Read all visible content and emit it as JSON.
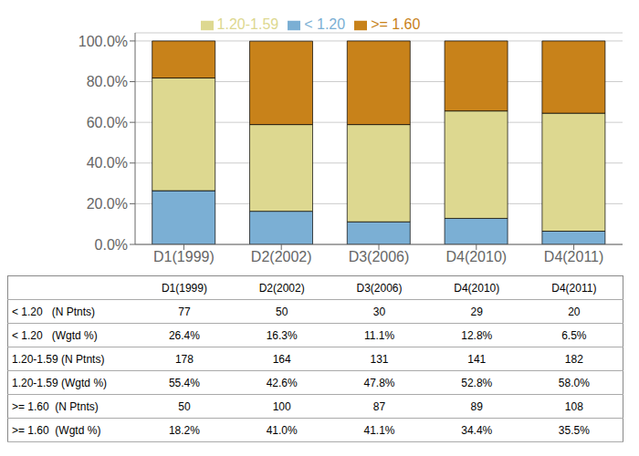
{
  "chart_data": {
    "type": "bar",
    "stacked": true,
    "grid": true,
    "legend": "top",
    "categories": [
      "D1(1999)",
      "D2(2002)",
      "D3(2006)",
      "D4(2010)",
      "D4(2011)"
    ],
    "series": [
      {
        "name": "< 1.20",
        "color": "#7bafd4",
        "values": [
          26.4,
          16.3,
          11.1,
          12.8,
          6.5
        ]
      },
      {
        "name": "1.20-1.59",
        "color": "#ddd890",
        "values": [
          55.4,
          42.6,
          47.8,
          52.8,
          58.0
        ]
      },
      {
        "name": ">= 1.60",
        "color": "#c8821a",
        "values": [
          18.2,
          41.0,
          41.1,
          34.4,
          35.5
        ]
      }
    ],
    "ylim": [
      0,
      104
    ],
    "yticks": [
      {
        "value": 0,
        "label": "0.0%"
      },
      {
        "value": 20,
        "label": "20.0%"
      },
      {
        "value": 40,
        "label": "40.0%"
      },
      {
        "value": 60,
        "label": "60.0%"
      },
      {
        "value": 80,
        "label": "80.0%"
      },
      {
        "value": 100,
        "label": "100.0%"
      }
    ],
    "table": {
      "row_labels": [
        "< 1.20   (N Ptnts)",
        "< 1.20   (Wgtd %)",
        "1.20-1.59 (N Ptnts)",
        "1.20-1.59 (Wgtd %)",
        ">= 1.60  (N Ptnts)",
        ">= 1.60  (Wgtd %)"
      ],
      "rows": [
        [
          "77",
          "50",
          "30",
          "29",
          "20"
        ],
        [
          "26.4%",
          "16.3%",
          "11.1%",
          "12.8%",
          "6.5%"
        ],
        [
          "178",
          "164",
          "131",
          "141",
          "182"
        ],
        [
          "55.4%",
          "42.6%",
          "47.8%",
          "52.8%",
          "58.0%"
        ],
        [
          "50",
          "100",
          "87",
          "89",
          "108"
        ],
        [
          "18.2%",
          "41.0%",
          "41.1%",
          "34.4%",
          "35.5%"
        ]
      ]
    }
  }
}
